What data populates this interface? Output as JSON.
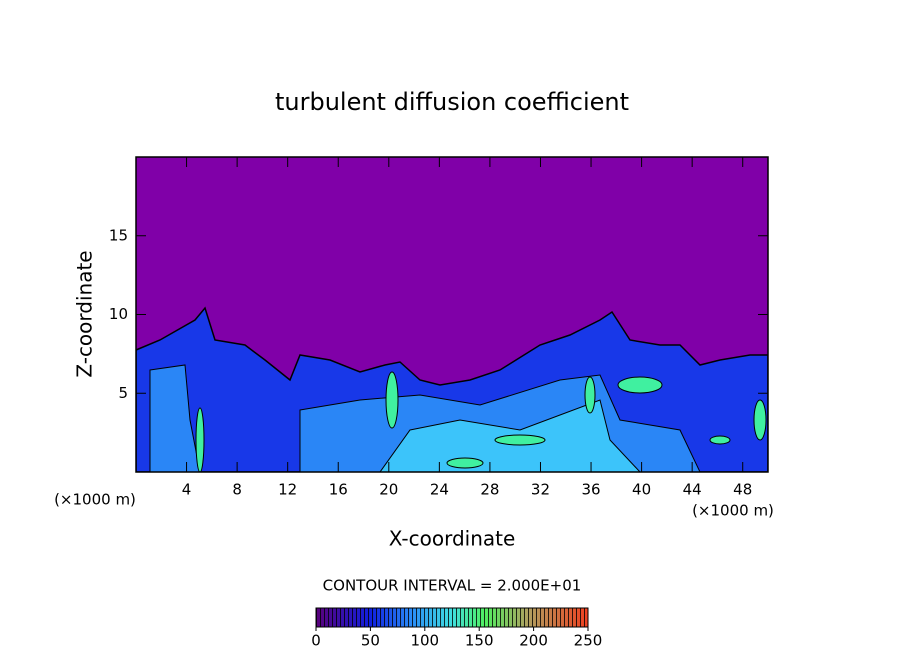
{
  "chart_data": {
    "type": "contour",
    "title": "turbulent diffusion coefficient",
    "xlabel": "X-coordinate",
    "ylabel": "Z-coordinate",
    "x_unit_labels": [
      "(×1000 m)",
      "(×1000 m)"
    ],
    "xlim": [
      0,
      50
    ],
    "xticks": [
      4,
      8,
      12,
      16,
      20,
      24,
      28,
      32,
      36,
      40,
      44,
      48
    ],
    "ylim": [
      0,
      20
    ],
    "yticks": [
      5,
      10,
      15
    ],
    "colorbar": {
      "label": "CONTOUR INTERVAL = 2.000E+01",
      "lim": [
        0,
        250
      ],
      "ticks": [
        0,
        50,
        100,
        150,
        200,
        250
      ]
    }
  }
}
